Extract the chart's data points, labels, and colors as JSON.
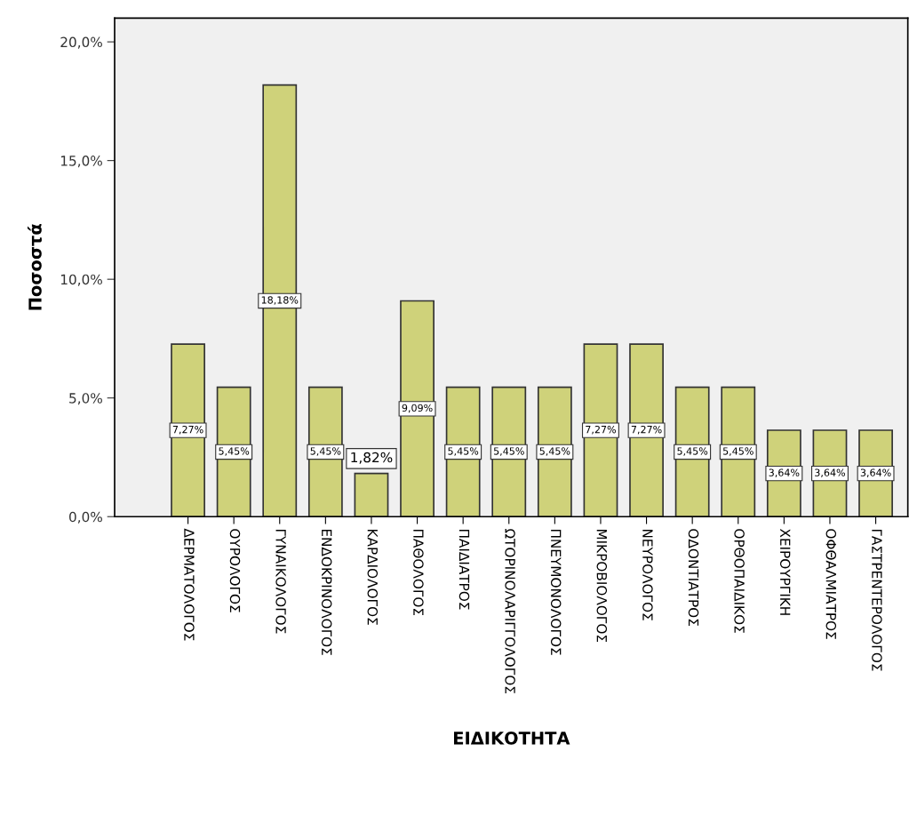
{
  "chart_data": {
    "type": "bar",
    "xlabel": "ΕΙΔΙΚΟΤΗΤΑ",
    "ylabel": "Ποσοστά",
    "categories": [
      "ΔΕΡΜΑΤΟΛΟΓΟΣ",
      "ΟΥΡΟΛΟΓΟΣ",
      "ΓΥΝΑΙΚΟΛΟΓΟΣ",
      "ΕΝΔΟΚΡΙΝΟΛΟΓΟΣ",
      "ΚΑΡΔΙΟΛΟΓΟΣ",
      "ΠΑΘΟΛΟΓΟΣ",
      "ΠΑΙΔΙΑΤΡΟΣ",
      "ΩΤΟΡΙΝΟΛΑΡΙΓΓΟΛΟΓΟΣ",
      "ΠΝΕΥΜΟΝΟΛΟΓΟΣ",
      "ΜΙΚΡΟΒΙΟΛΟΓΟΣ",
      "ΝΕΥΡΟΛΟΓΟΣ",
      "ΟΔΟΝΤΙΑΤΡΟΣ",
      "ΟΡΘΟΠΑΙΔΙΚΟΣ",
      "ΧΕΙΡΟΥΡΓΙΚΗ",
      "ΟΦΘΑΛΜΙΑΤΡΟΣ",
      "ΓΑΣΤΡΕΝΤΕΡΟΛΟΓΟΣ"
    ],
    "values": [
      7.27,
      5.45,
      18.18,
      5.45,
      1.82,
      9.09,
      5.45,
      5.45,
      5.45,
      7.27,
      7.27,
      5.45,
      5.45,
      3.64,
      3.64,
      3.64
    ],
    "value_labels": [
      "7,27%",
      "5,45%",
      "18,18%",
      "5,45%",
      "1,82%",
      "9,09%",
      "5,45%",
      "5,45%",
      "5,45%",
      "7,27%",
      "7,27%",
      "5,45%",
      "5,45%",
      "3,64%",
      "3,64%",
      "3,64%"
    ],
    "color": "#cfd27a",
    "ylim": [
      0,
      21.0
    ],
    "yticks": [
      {
        "value": 0,
        "label": "0,0%"
      },
      {
        "value": 5,
        "label": "5,0%"
      },
      {
        "value": 10,
        "label": "10,0%"
      },
      {
        "value": 15,
        "label": "15,0%"
      },
      {
        "value": 20,
        "label": "20,0%"
      }
    ],
    "grid": false,
    "legend": false
  }
}
